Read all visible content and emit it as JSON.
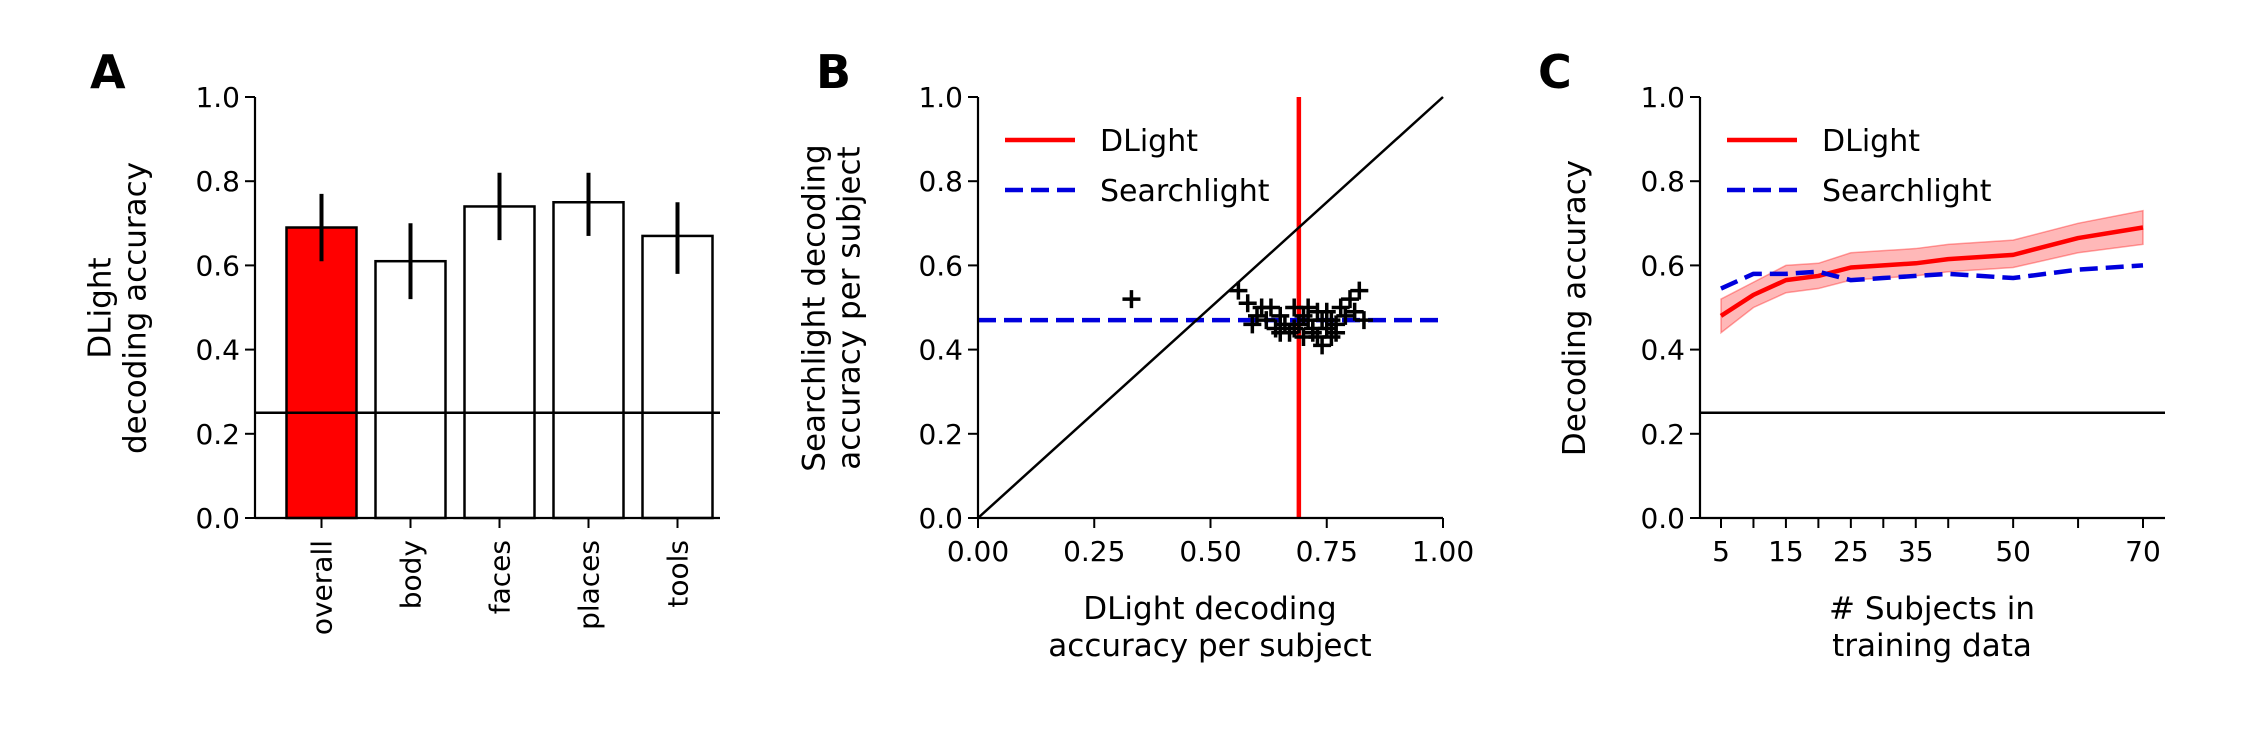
{
  "figure": {
    "panels": [
      "A",
      "B",
      "C"
    ]
  },
  "chart_data": [
    {
      "panel": "A",
      "type": "bar",
      "title": "",
      "xlabel": "",
      "ylabel": "DLight\ndecoding accuracy",
      "ylim": [
        0,
        1.0
      ],
      "yticks": [
        "0.0",
        "0.2",
        "0.4",
        "0.6",
        "0.8",
        "1.0"
      ],
      "categories": [
        "overall",
        "body",
        "faces",
        "places",
        "tools"
      ],
      "values": [
        0.69,
        0.61,
        0.74,
        0.75,
        0.67
      ],
      "errors": [
        [
          0.61,
          0.77
        ],
        [
          0.52,
          0.7
        ],
        [
          0.66,
          0.82
        ],
        [
          0.67,
          0.82
        ],
        [
          0.58,
          0.75
        ]
      ],
      "bar_colors": [
        "#ff0000",
        "#ffffff",
        "#ffffff",
        "#ffffff",
        "#ffffff"
      ],
      "chance_line": 0.25
    },
    {
      "panel": "B",
      "type": "scatter",
      "title": "",
      "xlabel": "DLight decoding\naccuracy per subject",
      "ylabel": "Searchlight decoding\naccuracy per subject",
      "xlim": [
        0,
        1.0
      ],
      "ylim": [
        0,
        1.0
      ],
      "xticks": [
        "0.00",
        "0.25",
        "0.50",
        "0.75",
        "1.00"
      ],
      "yticks": [
        "0.0",
        "0.2",
        "0.4",
        "0.6",
        "0.8",
        "1.0"
      ],
      "marker": "+",
      "points": [
        [
          0.33,
          0.52
        ],
        [
          0.56,
          0.54
        ],
        [
          0.58,
          0.51
        ],
        [
          0.59,
          0.46
        ],
        [
          0.6,
          0.48
        ],
        [
          0.62,
          0.47
        ],
        [
          0.63,
          0.5
        ],
        [
          0.64,
          0.45
        ],
        [
          0.65,
          0.48
        ],
        [
          0.66,
          0.46
        ],
        [
          0.67,
          0.44
        ],
        [
          0.68,
          0.5
        ],
        [
          0.69,
          0.46
        ],
        [
          0.7,
          0.48
        ],
        [
          0.7,
          0.43
        ],
        [
          0.71,
          0.47
        ],
        [
          0.72,
          0.45
        ],
        [
          0.73,
          0.49
        ],
        [
          0.73,
          0.43
        ],
        [
          0.74,
          0.47
        ],
        [
          0.74,
          0.41
        ],
        [
          0.75,
          0.45
        ],
        [
          0.75,
          0.49
        ],
        [
          0.76,
          0.47
        ],
        [
          0.76,
          0.43
        ],
        [
          0.77,
          0.46
        ],
        [
          0.78,
          0.5
        ],
        [
          0.79,
          0.48
        ],
        [
          0.8,
          0.52
        ],
        [
          0.81,
          0.49
        ],
        [
          0.82,
          0.54
        ],
        [
          0.83,
          0.47
        ],
        [
          0.65,
          0.44
        ],
        [
          0.68,
          0.45
        ],
        [
          0.71,
          0.5
        ],
        [
          0.72,
          0.44
        ],
        [
          0.77,
          0.44
        ],
        [
          0.61,
          0.5
        ]
      ],
      "reference_lines": [
        {
          "name": "DLight",
          "orientation": "vertical",
          "value": 0.69,
          "color": "#ff0000",
          "style": "solid"
        },
        {
          "name": "Searchlight",
          "orientation": "horizontal",
          "value": 0.47,
          "color": "#0000dd",
          "style": "dashed"
        },
        {
          "orientation": "diagonal",
          "from": [
            0,
            0
          ],
          "to": [
            1,
            1
          ],
          "color": "#000000",
          "style": "solid"
        }
      ],
      "legend": {
        "position": "top-left",
        "entries": [
          "DLight",
          "Searchlight"
        ]
      }
    },
    {
      "panel": "C",
      "type": "line",
      "title": "",
      "xlabel": "# Subjects in\ntraining data",
      "ylabel": "Decoding accuracy",
      "xlim": [
        0,
        72
      ],
      "ylim": [
        0,
        1.0
      ],
      "xticks": [
        "5",
        "15",
        "25",
        "35",
        "50",
        "70"
      ],
      "xtick_values": [
        5,
        15,
        25,
        35,
        50,
        70
      ],
      "xtick_minor": [
        10,
        20,
        30,
        40,
        60
      ],
      "yticks": [
        "0.0",
        "0.2",
        "0.4",
        "0.6",
        "0.8",
        "1.0"
      ],
      "x": [
        5,
        10,
        15,
        20,
        25,
        30,
        35,
        40,
        50,
        60,
        70
      ],
      "series": [
        {
          "name": "DLight",
          "color": "#ff0000",
          "style": "solid",
          "values": [
            0.48,
            0.53,
            0.565,
            0.575,
            0.595,
            0.6,
            0.605,
            0.615,
            0.625,
            0.665,
            0.69
          ],
          "band_lower": [
            0.44,
            0.5,
            0.535,
            0.545,
            0.565,
            0.57,
            0.575,
            0.585,
            0.595,
            0.63,
            0.65
          ],
          "band_upper": [
            0.52,
            0.56,
            0.6,
            0.605,
            0.63,
            0.635,
            0.64,
            0.65,
            0.66,
            0.7,
            0.73
          ]
        },
        {
          "name": "Searchlight",
          "color": "#0000dd",
          "style": "dashed",
          "values": [
            0.545,
            0.58,
            0.58,
            0.585,
            0.565,
            0.57,
            0.575,
            0.58,
            0.57,
            0.59,
            0.6
          ]
        }
      ],
      "chance_line": 0.25,
      "legend": {
        "position": "top-left",
        "entries": [
          "DLight",
          "Searchlight"
        ]
      }
    }
  ]
}
